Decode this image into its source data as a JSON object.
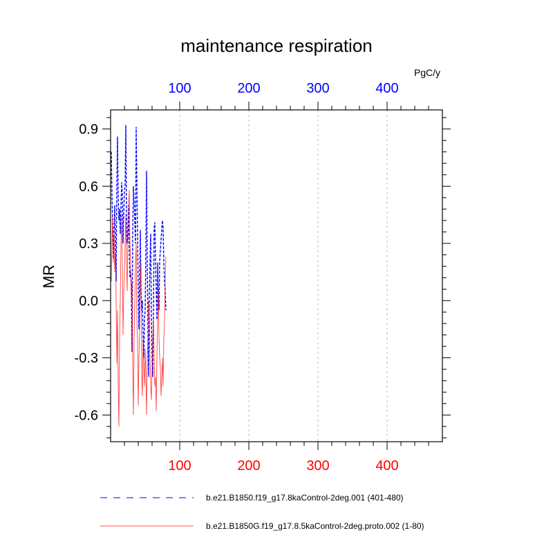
{
  "chart_data": {
    "type": "line",
    "title": "maintenance respiration",
    "ylabel": "MR",
    "top_axis_unit": "PgC/y",
    "xlim": [
      0,
      480
    ],
    "ylim": [
      -0.74,
      1.0
    ],
    "x_ticks": [
      100,
      200,
      300,
      400
    ],
    "y_ticks": [
      -0.6,
      -0.3,
      0.0,
      0.3,
      0.6,
      0.9
    ],
    "y_tick_labels": [
      "-0.6",
      "-0.3",
      "0.0",
      "0.3",
      "0.6",
      "0.9"
    ],
    "grid": "vertical dashed at major x ticks",
    "top_axis_color": "#0000ff",
    "bottom_axis_color": "#ff0000",
    "series": [
      {
        "name": "b.e21.B1850.f19_g17.8kaControl-2deg.001 (401-480)",
        "color": "#0000ff",
        "style": "dashed",
        "x": [
          1,
          2,
          3,
          4,
          5,
          6,
          7,
          8,
          9,
          10,
          11,
          12,
          13,
          14,
          15,
          16,
          17,
          18,
          19,
          20,
          21,
          22,
          23,
          24,
          25,
          26,
          27,
          28,
          29,
          30,
          31,
          32,
          33,
          34,
          35,
          36,
          37,
          38,
          39,
          40,
          41,
          42,
          43,
          44,
          45,
          46,
          47,
          48,
          49,
          50,
          51,
          52,
          53,
          54,
          55,
          56,
          57,
          58,
          59,
          60,
          61,
          62,
          63,
          64,
          65,
          66,
          67,
          68,
          69,
          70,
          71,
          72,
          73,
          74,
          75,
          76,
          77,
          78,
          79,
          80
        ],
        "values": [
          0.78,
          0.55,
          0.4,
          0.22,
          0.35,
          0.5,
          0.3,
          0.1,
          0.6,
          0.86,
          0.55,
          0.42,
          0.48,
          0.35,
          0.5,
          0.62,
          0.55,
          0.3,
          0.45,
          0.58,
          0.6,
          0.92,
          0.45,
          0.3,
          0.35,
          0.5,
          0.25,
          0.12,
          0.15,
          0.08,
          -0.27,
          0.35,
          0.6,
          0.52,
          0.42,
          0.3,
          0.91,
          0.6,
          0.35,
          0.05,
          -0.15,
          0.1,
          0.37,
          0.05,
          -0.05,
          0.0,
          -0.2,
          -0.3,
          -0.1,
          -0.05,
          0.25,
          0.68,
          0.2,
          -0.15,
          -0.4,
          0.02,
          0.2,
          0.35,
          -0.1,
          -0.3,
          -0.4,
          -0.05,
          0.38,
          0.41,
          0.21,
          0.05,
          -0.1,
          0.2,
          0.05,
          -0.05,
          0.21,
          0.26,
          0.32,
          0.37,
          0.42,
          0.38,
          0.2,
          0.1,
          0.05,
          -0.05
        ]
      },
      {
        "name": "b.e21.B1850G.f19_g17.8.5kaControl-2deg.proto.002 (1-80)",
        "color": "#ff0000",
        "style": "solid",
        "x": [
          1,
          2,
          3,
          4,
          5,
          6,
          7,
          8,
          9,
          10,
          11,
          12,
          13,
          14,
          15,
          16,
          17,
          18,
          19,
          20,
          21,
          22,
          23,
          24,
          25,
          26,
          27,
          28,
          29,
          30,
          31,
          32,
          33,
          34,
          35,
          36,
          37,
          38,
          39,
          40,
          41,
          42,
          43,
          44,
          45,
          46,
          47,
          48,
          49,
          50,
          51,
          52,
          53,
          54,
          55,
          56,
          57,
          58,
          59,
          60,
          61,
          62,
          63,
          64,
          65,
          66,
          67,
          68,
          69,
          70,
          71,
          72,
          73,
          74,
          75,
          76,
          77,
          78,
          79,
          80
        ],
        "values": [
          0.1,
          0.3,
          0.45,
          0.2,
          0.35,
          0.15,
          0.25,
          0.0,
          -0.33,
          -0.05,
          -0.45,
          -0.66,
          -0.2,
          0.0,
          0.3,
          0.45,
          0.2,
          -0.18,
          0.05,
          0.15,
          0.3,
          0.45,
          0.2,
          0.05,
          0.35,
          0.5,
          0.58,
          0.3,
          0.2,
          0.0,
          0.1,
          -0.35,
          -0.6,
          -0.2,
          0.0,
          0.2,
          0.3,
          -0.1,
          -0.22,
          -0.55,
          -0.3,
          -0.15,
          0.1,
          0.2,
          -0.4,
          -0.5,
          -0.2,
          -0.35,
          -0.45,
          -0.25,
          -0.4,
          -0.6,
          -0.3,
          -0.2,
          0.0,
          -0.05,
          -0.3,
          -0.45,
          -0.52,
          -0.35,
          -0.2,
          -0.1,
          -0.3,
          -0.45,
          -0.4,
          -0.58,
          -0.3,
          -0.1,
          0.05,
          -0.2,
          -0.3,
          -0.35,
          -0.5,
          -0.4,
          -0.3,
          -0.45,
          -0.2,
          -0.1,
          0.1,
          0.23
        ]
      }
    ]
  }
}
